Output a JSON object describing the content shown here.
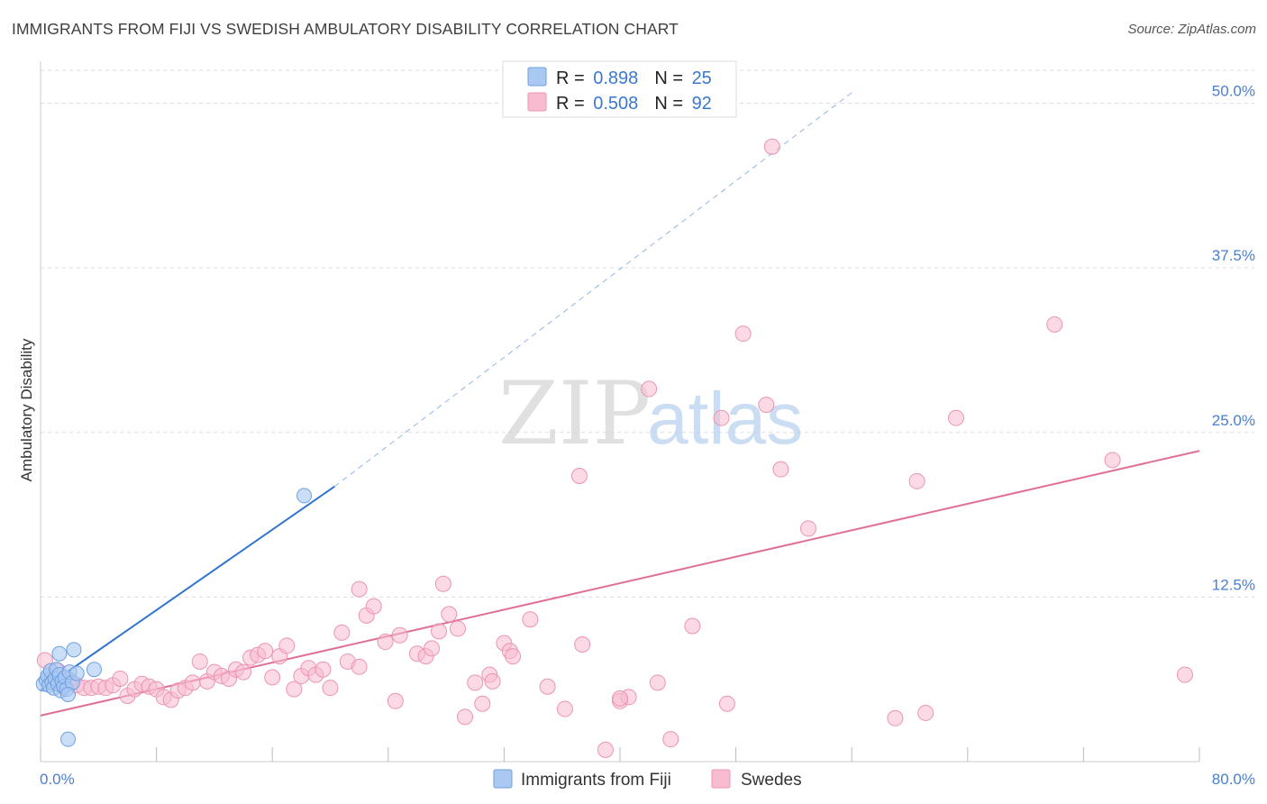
{
  "title": "IMMIGRANTS FROM FIJI VS SWEDISH AMBULATORY DISABILITY CORRELATION CHART",
  "source": "Source: ZipAtlas.com",
  "colors": {
    "blue_fill": "#a9c8f2",
    "blue_stroke": "#6e9fe0",
    "blue_line": "#2f74d0",
    "pink_fill": "#f7bccf",
    "pink_stroke": "#ec94b3",
    "pink_line": "#e06f97",
    "axis_label": "#4a7fd0",
    "grid": "#dddddd"
  },
  "chart_data": {
    "type": "scatter",
    "title": "IMMIGRANTS FROM FIJI VS SWEDISH AMBULATORY DISABILITY CORRELATION CHART",
    "xlabel": "",
    "ylabel": "Ambulatory Disability",
    "xlim": [
      0,
      80
    ],
    "ylim": [
      0,
      52.5
    ],
    "x_tick_labels": [
      "0.0%",
      "80.0%"
    ],
    "y_ticks": [
      12.5,
      25.0,
      37.5,
      50.0
    ],
    "y_tick_labels": [
      "12.5%",
      "25.0%",
      "37.5%",
      "50.0%"
    ],
    "grid": true,
    "legend_top": [
      {
        "series": "Immigrants from Fiji",
        "r_label": "R = ",
        "r_value": "0.898",
        "n_label": "N = ",
        "n_value": "25"
      },
      {
        "series": "Swedes",
        "r_label": "R = ",
        "r_value": "0.508",
        "n_label": "N = ",
        "n_value": "92"
      }
    ],
    "legend_bottom": [
      "Immigrants from Fiji",
      "Swedes"
    ],
    "watermark": "ZIPatlas",
    "series": [
      {
        "name": "Immigrants from Fiji",
        "color": "blue",
        "points": [
          [
            0.2,
            5.9
          ],
          [
            0.4,
            6.2
          ],
          [
            0.5,
            6.5
          ],
          [
            0.6,
            5.8
          ],
          [
            0.7,
            6.9
          ],
          [
            0.8,
            6.0
          ],
          [
            0.9,
            5.6
          ],
          [
            1.0,
            6.3
          ],
          [
            1.1,
            7.0
          ],
          [
            1.2,
            5.9
          ],
          [
            1.3,
            6.6
          ],
          [
            1.4,
            5.4
          ],
          [
            1.5,
            6.1
          ],
          [
            1.6,
            5.7
          ],
          [
            1.7,
            6.4
          ],
          [
            1.8,
            5.5
          ],
          [
            1.3,
            8.2
          ],
          [
            2.0,
            6.8
          ],
          [
            2.2,
            6.0
          ],
          [
            1.9,
            5.1
          ],
          [
            2.5,
            6.7
          ],
          [
            2.3,
            8.5
          ],
          [
            3.7,
            7.0
          ],
          [
            1.9,
            1.7
          ],
          [
            18.2,
            20.2
          ]
        ],
        "trend": {
          "x0": 0,
          "y0": 5.4,
          "x1": 20.3,
          "y1": 20.9,
          "dash_x1": 56.0,
          "dash_y1": 50.8
        }
      },
      {
        "name": "Swedes",
        "color": "pink",
        "points": [
          [
            0.3,
            7.7
          ],
          [
            0.8,
            6.4
          ],
          [
            1.2,
            6.9
          ],
          [
            1.6,
            5.7
          ],
          [
            2.0,
            6.2
          ],
          [
            2.5,
            5.8
          ],
          [
            3.0,
            5.6
          ],
          [
            3.5,
            5.6
          ],
          [
            4.0,
            5.7
          ],
          [
            4.5,
            5.6
          ],
          [
            5.0,
            5.8
          ],
          [
            5.5,
            6.3
          ],
          [
            6.0,
            5.0
          ],
          [
            6.5,
            5.5
          ],
          [
            7.0,
            5.9
          ],
          [
            7.5,
            5.7
          ],
          [
            8.0,
            5.5
          ],
          [
            8.5,
            4.9
          ],
          [
            9.0,
            4.7
          ],
          [
            9.5,
            5.4
          ],
          [
            10.0,
            5.6
          ],
          [
            10.5,
            6.0
          ],
          [
            11.0,
            7.6
          ],
          [
            11.5,
            6.1
          ],
          [
            12.0,
            6.8
          ],
          [
            12.5,
            6.5
          ],
          [
            13.0,
            6.3
          ],
          [
            13.5,
            7.0
          ],
          [
            14.0,
            6.8
          ],
          [
            14.5,
            7.9
          ],
          [
            15.0,
            8.1
          ],
          [
            15.5,
            8.4
          ],
          [
            16.0,
            6.4
          ],
          [
            16.5,
            8.0
          ],
          [
            17.0,
            8.8
          ],
          [
            17.5,
            5.5
          ],
          [
            18.0,
            6.5
          ],
          [
            18.5,
            7.1
          ],
          [
            19.0,
            6.6
          ],
          [
            19.5,
            7.0
          ],
          [
            20.0,
            5.6
          ],
          [
            20.8,
            9.8
          ],
          [
            21.2,
            7.6
          ],
          [
            22.0,
            7.2
          ],
          [
            22.5,
            11.1
          ],
          [
            22.0,
            13.1
          ],
          [
            23.0,
            11.8
          ],
          [
            23.8,
            9.1
          ],
          [
            24.5,
            4.6
          ],
          [
            24.8,
            9.6
          ],
          [
            26.0,
            8.2
          ],
          [
            26.6,
            8.0
          ],
          [
            27.0,
            8.6
          ],
          [
            27.5,
            9.9
          ],
          [
            27.8,
            13.5
          ],
          [
            28.2,
            11.2
          ],
          [
            28.8,
            10.1
          ],
          [
            29.3,
            3.4
          ],
          [
            30.0,
            6.0
          ],
          [
            30.5,
            4.4
          ],
          [
            31.0,
            6.6
          ],
          [
            31.2,
            6.1
          ],
          [
            32.0,
            9.0
          ],
          [
            32.4,
            8.4
          ],
          [
            32.6,
            8.0
          ],
          [
            33.8,
            10.8
          ],
          [
            35.0,
            5.7
          ],
          [
            36.2,
            4.0
          ],
          [
            37.2,
            21.7
          ],
          [
            37.4,
            8.9
          ],
          [
            39.0,
            0.9
          ],
          [
            40.0,
            4.6
          ],
          [
            40.6,
            4.9
          ],
          [
            42.0,
            28.3
          ],
          [
            42.6,
            6.0
          ],
          [
            43.5,
            1.7
          ],
          [
            45.0,
            10.3
          ],
          [
            47.0,
            26.1
          ],
          [
            47.4,
            4.4
          ],
          [
            48.5,
            32.5
          ],
          [
            50.1,
            27.1
          ],
          [
            50.5,
            46.7
          ],
          [
            51.1,
            22.2
          ],
          [
            53.0,
            17.7
          ],
          [
            59.0,
            3.3
          ],
          [
            60.5,
            21.3
          ],
          [
            61.1,
            3.7
          ],
          [
            63.2,
            26.1
          ],
          [
            70.0,
            33.2
          ],
          [
            74.0,
            22.9
          ],
          [
            79.0,
            6.6
          ],
          [
            40.0,
            4.8
          ]
        ],
        "trend": {
          "x0": 0,
          "y0": 3.5,
          "x1": 80.0,
          "y1": 23.6
        }
      }
    ]
  }
}
